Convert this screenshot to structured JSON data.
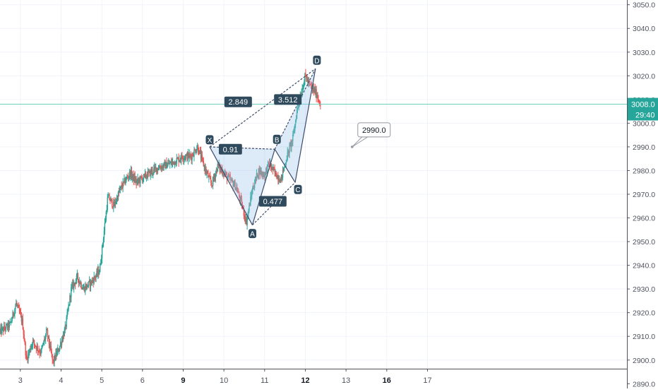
{
  "colors": {
    "up": "#26a69a",
    "down": "#ef5350",
    "grid": "#f0f3fa",
    "axis_text": "#50535e",
    "pattern_line": "#3d4b6b",
    "pattern_fill": "#9fc2e8",
    "label_bg": "#2f4a5d",
    "price_line": "#6fcfbf",
    "price_badge": "#26a69a"
  },
  "chart_data": {
    "type": "candlestick",
    "y_range": [
      2888,
      3052
    ],
    "x_range": [
      2.5,
      17.9
    ],
    "y_ticks": [
      "3050.0",
      "3040.0",
      "3030.0",
      "3020.0",
      "3010.0",
      "3000.0",
      "2990.0",
      "2980.0",
      "2970.0",
      "2960.0",
      "2950.0",
      "2940.0",
      "2930.0",
      "2920.0",
      "2910.0",
      "2900.0",
      "2890.0"
    ],
    "y_tick_values": [
      3050,
      3040,
      3030,
      3020,
      3010,
      3000,
      2990,
      2980,
      2970,
      2960,
      2950,
      2940,
      2930,
      2920,
      2910,
      2900,
      2890
    ],
    "x_ticks": [
      {
        "label": "3",
        "x": 3,
        "bold": false
      },
      {
        "label": "4",
        "x": 4,
        "bold": false
      },
      {
        "label": "5",
        "x": 5,
        "bold": false
      },
      {
        "label": "6",
        "x": 6,
        "bold": false
      },
      {
        "label": "9",
        "x": 7,
        "bold": true
      },
      {
        "label": "10",
        "x": 8,
        "bold": false
      },
      {
        "label": "11",
        "x": 9,
        "bold": false
      },
      {
        "label": "12",
        "x": 10,
        "bold": true
      },
      {
        "label": "13",
        "x": 11,
        "bold": false
      },
      {
        "label": "16",
        "x": 12,
        "bold": true
      },
      {
        "label": "17",
        "x": 13,
        "bold": false
      }
    ],
    "price_path": [
      [
        2.5,
        2912
      ],
      [
        2.75,
        2915
      ],
      [
        2.9,
        2924
      ],
      [
        3.05,
        2916
      ],
      [
        3.15,
        2900
      ],
      [
        3.3,
        2908
      ],
      [
        3.5,
        2903
      ],
      [
        3.65,
        2912
      ],
      [
        3.8,
        2899
      ],
      [
        3.95,
        2905
      ],
      [
        4.1,
        2913
      ],
      [
        4.25,
        2930
      ],
      [
        4.4,
        2935
      ],
      [
        4.55,
        2930
      ],
      [
        4.75,
        2933
      ],
      [
        4.95,
        2938
      ],
      [
        5.15,
        2969
      ],
      [
        5.3,
        2965
      ],
      [
        5.45,
        2972
      ],
      [
        5.55,
        2975
      ],
      [
        5.7,
        2979
      ],
      [
        5.85,
        2975
      ],
      [
        6.1,
        2978
      ],
      [
        6.35,
        2981
      ],
      [
        6.7,
        2983
      ],
      [
        7.0,
        2986
      ],
      [
        7.2,
        2986
      ],
      [
        7.35,
        2990
      ],
      [
        7.55,
        2980
      ],
      [
        7.7,
        2974
      ],
      [
        7.85,
        2982
      ],
      [
        8.0,
        2979
      ],
      [
        8.15,
        2976
      ],
      [
        8.3,
        2973
      ],
      [
        8.45,
        2965
      ],
      [
        8.55,
        2958
      ],
      [
        8.7,
        2972
      ],
      [
        8.85,
        2980
      ],
      [
        9.0,
        2978
      ],
      [
        9.1,
        2983
      ],
      [
        9.25,
        2979
      ],
      [
        9.4,
        2976
      ],
      [
        9.55,
        2986
      ],
      [
        9.7,
        2994
      ],
      [
        9.8,
        3006
      ],
      [
        9.9,
        3013
      ],
      [
        10.0,
        3020
      ],
      [
        10.1,
        3016
      ],
      [
        10.25,
        3013
      ],
      [
        10.38,
        3008
      ]
    ],
    "pattern": {
      "points": {
        "X": [
          7.65,
          2990
        ],
        "A": [
          8.7,
          2957
        ],
        "B": [
          9.25,
          2989
        ],
        "C": [
          9.75,
          2975
        ],
        "D": [
          10.25,
          3023
        ]
      },
      "labels": {
        "X": "X",
        "A": "A",
        "B": "B",
        "C": "C",
        "D": "D"
      },
      "ratios": [
        {
          "text": "2.849",
          "x": 8.35,
          "y": 3009
        },
        {
          "text": "0.91",
          "x": 8.16,
          "y": 2989
        },
        {
          "text": "0.477",
          "x": 9.2,
          "y": 2967
        },
        {
          "text": "3.512",
          "x": 9.57,
          "y": 3010
        }
      ]
    },
    "callout": {
      "text": "2990.0",
      "x": 11.15,
      "y": 2990
    },
    "last_price": {
      "value": "3008.0",
      "y": 3008
    },
    "countdown": "29:40"
  }
}
